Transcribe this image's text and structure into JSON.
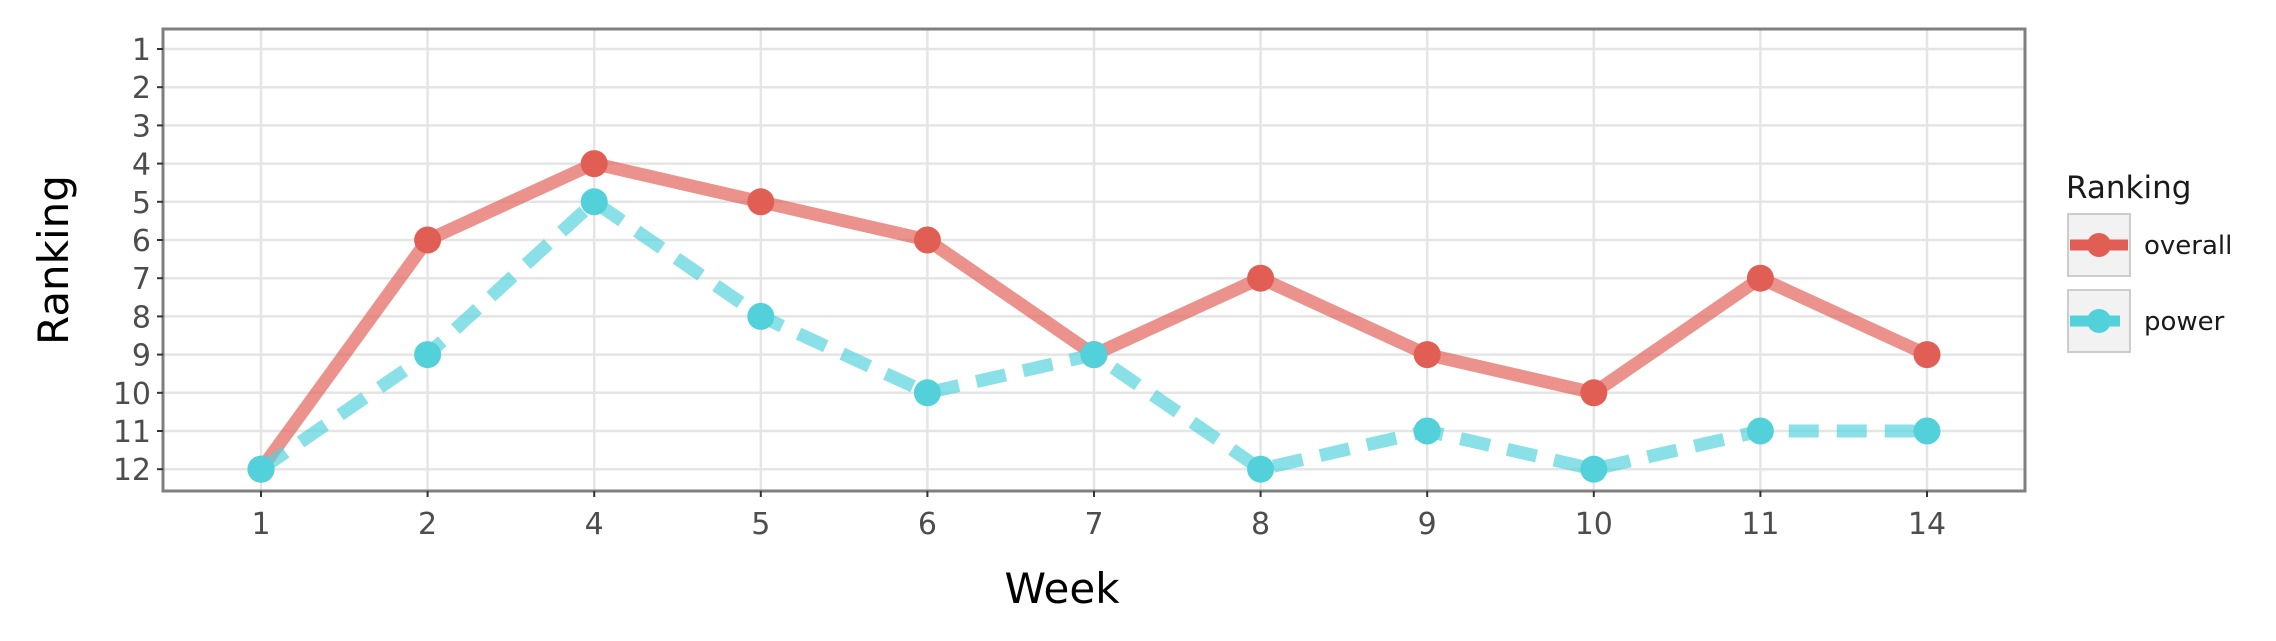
{
  "chart_data": {
    "type": "line",
    "xlabel": "Week",
    "ylabel": "Ranking",
    "categories": [
      "1",
      "2",
      "4",
      "5",
      "6",
      "7",
      "8",
      "9",
      "10",
      "11",
      "14"
    ],
    "y_ticks": [
      "1",
      "2",
      "3",
      "4",
      "5",
      "6",
      "7",
      "8",
      "9",
      "10",
      "11",
      "12"
    ],
    "ylim": [
      12,
      1
    ],
    "y_reversed": true,
    "grid": true,
    "legend": {
      "title": "Ranking",
      "placement": "right"
    },
    "series": [
      {
        "name": "overall",
        "color": "#e15e55",
        "dashed": false,
        "values": [
          12,
          6,
          4,
          5,
          6,
          9,
          7,
          9,
          10,
          7,
          9
        ]
      },
      {
        "name": "power",
        "color": "#52d1db",
        "dashed": true,
        "values": [
          12,
          9,
          5,
          8,
          10,
          9,
          12,
          11,
          12,
          11,
          11
        ]
      }
    ]
  }
}
